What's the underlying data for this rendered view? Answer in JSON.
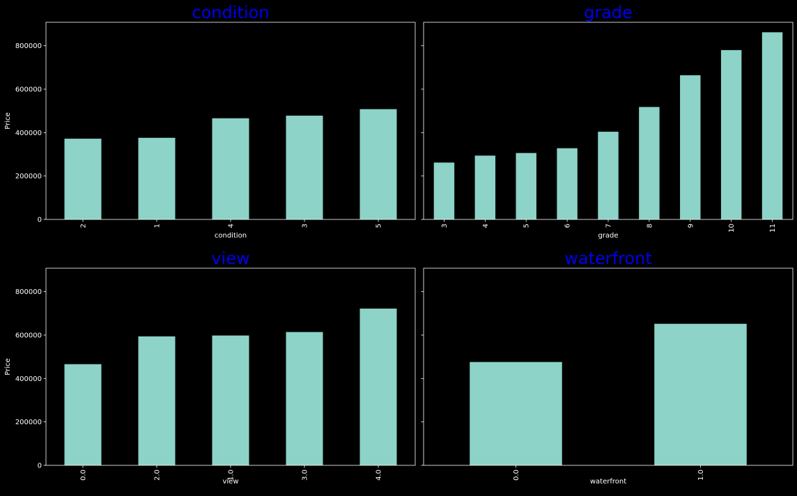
{
  "chart_data": [
    {
      "type": "bar",
      "title": "condition",
      "xlabel": "condition",
      "ylabel": "Price",
      "categories": [
        "2",
        "1",
        "4",
        "3",
        "5"
      ],
      "values": [
        372000,
        376000,
        466000,
        478000,
        508000
      ],
      "ylim": [
        0,
        908000
      ],
      "yticks": [
        "0",
        "200000",
        "400000",
        "600000",
        "800000"
      ],
      "ytick_labels_visible": true,
      "bar_color": "#8dd3c7",
      "grid": false
    },
    {
      "type": "bar",
      "title": "grade",
      "xlabel": "grade",
      "ylabel": "",
      "categories": [
        "3",
        "4",
        "5",
        "6",
        "7",
        "8",
        "9",
        "10",
        "11"
      ],
      "values": [
        262000,
        294000,
        306000,
        328000,
        404000,
        518000,
        664000,
        780000,
        862000
      ],
      "ylim": [
        0,
        908000
      ],
      "yticks": [
        "0",
        "200000",
        "400000",
        "600000",
        "800000"
      ],
      "ytick_labels_visible": false,
      "bar_color": "#8dd3c7",
      "grid": false
    },
    {
      "type": "bar",
      "title": "view",
      "xlabel": "view",
      "ylabel": "Price",
      "categories": [
        "0.0",
        "2.0",
        "1.0",
        "3.0",
        "4.0"
      ],
      "values": [
        466000,
        594000,
        598000,
        614000,
        722000
      ],
      "ylim": [
        0,
        908000
      ],
      "yticks": [
        "0",
        "200000",
        "400000",
        "600000",
        "800000"
      ],
      "ytick_labels_visible": true,
      "bar_color": "#8dd3c7",
      "grid": false
    },
    {
      "type": "bar",
      "title": "waterfront",
      "xlabel": "waterfront",
      "ylabel": "",
      "categories": [
        "0.0",
        "1.0"
      ],
      "values": [
        476000,
        652000
      ],
      "ylim": [
        0,
        908000
      ],
      "yticks": [
        "0",
        "200000",
        "400000",
        "600000",
        "800000"
      ],
      "ytick_labels_visible": false,
      "bar_color": "#8dd3c7",
      "grid": false
    }
  ],
  "colors": {
    "background": "#000000",
    "bar": "#8dd3c7",
    "title": "#0000ee",
    "text": "#ffffff"
  }
}
